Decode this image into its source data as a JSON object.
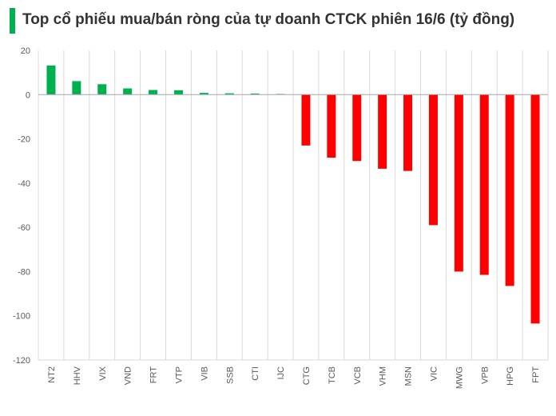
{
  "title": "Top cổ phiếu mua/bán ròng của tự doanh CTCK phiên 16/6 (tỷ đồng)",
  "colors": {
    "positive": "#00b050",
    "negative": "#ff0000",
    "title_accent": "#00b050",
    "grid": "#d9d9d9",
    "axis_text": "#595959"
  },
  "chart_data": {
    "type": "bar",
    "title": "Top cổ phiếu mua/bán ròng của tự doanh CTCK phiên 16/6 (tỷ đồng)",
    "categories": [
      "NT2",
      "HHV",
      "VIX",
      "VND",
      "FRT",
      "VTP",
      "VIB",
      "SSB",
      "CTI",
      "IJC",
      "CTG",
      "TCB",
      "VCB",
      "VHM",
      "MSN",
      "VIC",
      "MWG",
      "VPB",
      "HPG",
      "FPT"
    ],
    "values": [
      13.2,
      6.1,
      4.7,
      2.8,
      2.1,
      2.0,
      0.8,
      0.6,
      0.5,
      0.3,
      -23,
      -28.5,
      -30,
      -33.5,
      -34.5,
      -59,
      -80,
      -81.5,
      -86.5,
      -103.5
    ],
    "xlabel": "",
    "ylabel": "",
    "ylim": [
      -120,
      20
    ],
    "yticks": [
      20,
      0,
      -20,
      -40,
      -60,
      -80,
      -100,
      -120
    ],
    "grid": "vertical"
  }
}
